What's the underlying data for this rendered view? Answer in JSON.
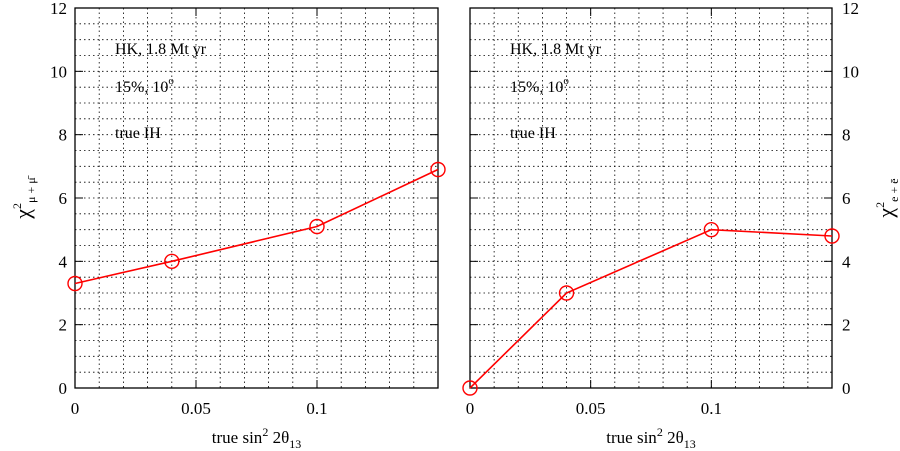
{
  "chart_data": [
    {
      "type": "line",
      "x": [
        0,
        0.04,
        0.1,
        0.15
      ],
      "series": [
        {
          "values": [
            3.3,
            4.0,
            5.1,
            6.9
          ],
          "color": "#ff0000",
          "marker": "open-circle"
        }
      ],
      "xlim": [
        0,
        0.15
      ],
      "ylim": [
        0,
        12
      ],
      "xticks": [
        "0",
        "0.05",
        "0.1"
      ],
      "yticks": [
        "0",
        "2",
        "4",
        "6",
        "8",
        "10",
        "12"
      ],
      "xlabel": {
        "main": "true sin",
        "sup": "2",
        "mid": " 2θ",
        "sub": "13"
      },
      "ylabel": {
        "main": "χ",
        "sup": "2",
        "sub": "μ + μ̄"
      },
      "yaxis_side": "left",
      "grid": true,
      "annotations": [
        {
          "text": "HK, 1.8 Mt yr"
        },
        {
          "text": "15%, 10",
          "sup": "o"
        },
        {
          "text": "true IH"
        }
      ]
    },
    {
      "type": "line",
      "x": [
        0,
        0.04,
        0.1,
        0.15
      ],
      "series": [
        {
          "values": [
            0.0,
            3.0,
            5.0,
            4.8
          ],
          "color": "#ff0000",
          "marker": "open-circle"
        }
      ],
      "xlim": [
        0,
        0.15
      ],
      "ylim": [
        0,
        12
      ],
      "xticks": [
        "0",
        "0.05",
        "0.1"
      ],
      "yticks": [
        "0",
        "2",
        "4",
        "6",
        "8",
        "10",
        "12"
      ],
      "xlabel": {
        "main": "true sin",
        "sup": "2",
        "mid": " 2θ",
        "sub": "13"
      },
      "ylabel": {
        "main": "χ",
        "sup": "2",
        "sub": "e + ē"
      },
      "yaxis_side": "right",
      "grid": true,
      "annotations": [
        {
          "text": "HK, 1.8 Mt yr"
        },
        {
          "text": "15%, 10",
          "sup": "o"
        },
        {
          "text": "true IH"
        }
      ]
    }
  ]
}
